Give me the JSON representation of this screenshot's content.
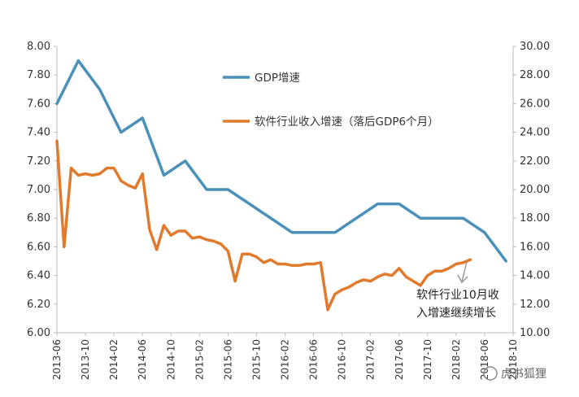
{
  "chart_data": {
    "type": "line",
    "left_axis": {
      "ylim": [
        6.0,
        8.0
      ],
      "ticks": [
        "6.00",
        "6.20",
        "6.40",
        "6.60",
        "6.80",
        "7.00",
        "7.20",
        "7.40",
        "7.60",
        "7.80",
        "8.00"
      ]
    },
    "right_axis": {
      "ylim": [
        10.0,
        30.0
      ],
      "ticks": [
        "10.00",
        "12.00",
        "14.00",
        "16.00",
        "18.00",
        "20.00",
        "22.00",
        "24.00",
        "26.00",
        "28.00",
        "30.00"
      ]
    },
    "x_ticks": [
      "2013-06",
      "2013-10",
      "2014-02",
      "2014-06",
      "2014-10",
      "2015-02",
      "2015-06",
      "2015-10",
      "2016-02",
      "2016-06",
      "2016-10",
      "2017-02",
      "2017-06",
      "2017-10",
      "2018-02",
      "2018-06",
      "2018-10"
    ],
    "x_range": [
      0,
      64
    ],
    "series": [
      {
        "name": "GDP增速",
        "axis": "left",
        "color": "#4A90B8",
        "x": [
          0,
          3,
          6,
          9,
          12,
          15,
          18,
          21,
          24,
          27,
          30,
          33,
          36,
          39,
          42,
          45,
          48,
          51,
          54,
          57,
          60,
          63
        ],
        "y": [
          7.6,
          7.9,
          7.7,
          7.4,
          7.5,
          7.1,
          7.2,
          7.0,
          7.0,
          6.9,
          6.8,
          6.7,
          6.7,
          6.7,
          6.8,
          6.9,
          6.9,
          6.8,
          6.8,
          6.8,
          6.7,
          6.5
        ]
      },
      {
        "name": "软件行业收入增速（落后GDP6个月）",
        "axis": "right",
        "color": "#E07B2E",
        "x": [
          0,
          1,
          2,
          3,
          4,
          5,
          6,
          7,
          8,
          9,
          10,
          11,
          12,
          13,
          14,
          15,
          16,
          17,
          18,
          19,
          20,
          21,
          22,
          23,
          24,
          25,
          26,
          27,
          28,
          29,
          30,
          31,
          32,
          33,
          34,
          35,
          36,
          37,
          38,
          39,
          40,
          41,
          42,
          43,
          44,
          45,
          46,
          47,
          48,
          49,
          50,
          51,
          52,
          53,
          54,
          55,
          56,
          57,
          58
        ],
        "y": [
          23.4,
          16.0,
          21.5,
          21.0,
          21.1,
          21.0,
          21.1,
          21.5,
          21.5,
          20.6,
          20.3,
          20.1,
          21.1,
          17.2,
          15.8,
          17.5,
          16.8,
          17.1,
          17.1,
          16.6,
          16.7,
          16.5,
          16.4,
          16.2,
          15.7,
          13.6,
          15.5,
          15.5,
          15.3,
          14.9,
          15.1,
          14.8,
          14.8,
          14.7,
          14.7,
          14.8,
          14.8,
          14.9,
          11.6,
          12.7,
          13.0,
          13.2,
          13.5,
          13.7,
          13.6,
          13.9,
          14.1,
          14.0,
          14.5,
          13.9,
          13.6,
          13.3,
          14.0,
          14.3,
          14.3,
          14.5,
          14.8,
          14.9,
          15.1
        ]
      }
    ],
    "annotation": {
      "line1": "软件行业10月收",
      "line2": "入增速继续增长"
    },
    "grid": false,
    "legend_placement": "top-center"
  },
  "watermark": "虎书狐狸"
}
